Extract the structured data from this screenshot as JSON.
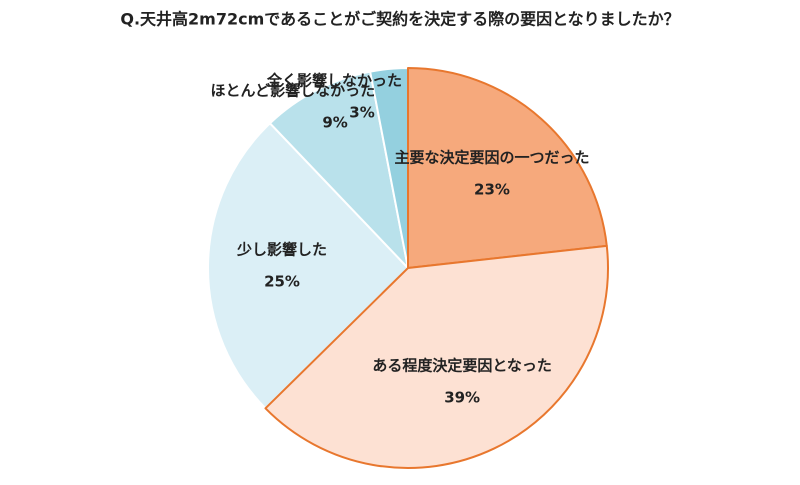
{
  "chart_data": {
    "type": "pie",
    "title": "Q.天井高2m72cmであることがご契約を決定する際の要因となりましたか？",
    "categories": [
      "主要な決定要因の一つだった",
      "ある程度決定要因となった",
      "少し影響した",
      "ほとんど影響しなかった",
      "全く影響しなかった"
    ],
    "values": [
      23,
      39,
      25,
      9,
      3
    ],
    "value_labels": [
      "23%",
      "39%",
      "25%",
      "9%",
      "3%"
    ],
    "colors": [
      "#f6a97c",
      "#fde1d3",
      "#dbeff6",
      "#b9e1eb",
      "#94d0df"
    ],
    "edge_colors": [
      "#e8772e",
      "#e8772e",
      "#ffffff",
      "#ffffff",
      "#ffffff"
    ]
  }
}
